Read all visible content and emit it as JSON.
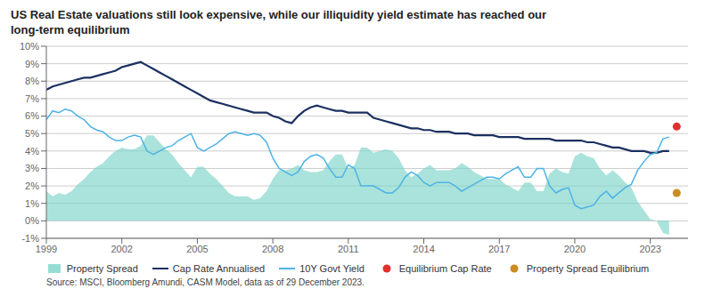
{
  "chart_data": {
    "type": "line",
    "title": "US Real Estate valuations still look expensive, while our illiquidity yield estimate has reached our\nlong-term equilibrium",
    "annotations": [
      "Source: MSCI, Bloomberg Amundi, CASM Model, data as of 29 December 2023."
    ],
    "x": [
      1999.0,
      1999.25,
      1999.5,
      1999.75,
      2000.0,
      2000.25,
      2000.5,
      2000.75,
      2001.0,
      2001.25,
      2001.5,
      2001.75,
      2002.0,
      2002.25,
      2002.5,
      2002.75,
      2003.0,
      2003.25,
      2003.5,
      2003.75,
      2004.0,
      2004.25,
      2004.5,
      2004.75,
      2005.0,
      2005.25,
      2005.5,
      2005.75,
      2006.0,
      2006.25,
      2006.5,
      2006.75,
      2007.0,
      2007.25,
      2007.5,
      2007.75,
      2008.0,
      2008.25,
      2008.5,
      2008.75,
      2009.0,
      2009.25,
      2009.5,
      2009.75,
      2010.0,
      2010.25,
      2010.5,
      2010.75,
      2011.0,
      2011.25,
      2011.5,
      2011.75,
      2012.0,
      2012.25,
      2012.5,
      2012.75,
      2013.0,
      2013.25,
      2013.5,
      2013.75,
      2014.0,
      2014.25,
      2014.5,
      2014.75,
      2015.0,
      2015.25,
      2015.5,
      2015.75,
      2016.0,
      2016.25,
      2016.5,
      2016.75,
      2017.0,
      2017.25,
      2017.5,
      2017.75,
      2018.0,
      2018.25,
      2018.5,
      2018.75,
      2019.0,
      2019.25,
      2019.5,
      2019.75,
      2020.0,
      2020.25,
      2020.5,
      2020.75,
      2021.0,
      2021.25,
      2021.5,
      2021.75,
      2022.0,
      2022.25,
      2022.5,
      2022.75,
      2023.0,
      2023.25,
      2023.5,
      2023.75
    ],
    "xlim": [
      1999.0,
      2024.5
    ],
    "xticks": [
      1999,
      2002,
      2005,
      2008,
      2011,
      2014,
      2017,
      2020,
      2023
    ],
    "ylim": [
      -0.01,
      0.1
    ],
    "yticks": [
      {
        "value": -0.01,
        "label": "-1%"
      },
      {
        "value": 0.0,
        "label": "0%"
      },
      {
        "value": 0.01,
        "label": "1%"
      },
      {
        "value": 0.02,
        "label": "2%"
      },
      {
        "value": 0.03,
        "label": "3%"
      },
      {
        "value": 0.04,
        "label": "4%"
      },
      {
        "value": 0.05,
        "label": "5%"
      },
      {
        "value": 0.06,
        "label": "6%"
      },
      {
        "value": 0.07,
        "label": "7%"
      },
      {
        "value": 0.08,
        "label": "8%"
      },
      {
        "value": 0.09,
        "label": "9%"
      },
      {
        "value": 0.1,
        "label": "10%"
      }
    ],
    "grid": true,
    "legend": "bottom",
    "series": [
      {
        "name": "Property Spread",
        "type": "area",
        "color": "#7dd4c8",
        "values": [
          0.017,
          0.014,
          0.016,
          0.015,
          0.017,
          0.021,
          0.024,
          0.028,
          0.031,
          0.033,
          0.037,
          0.04,
          0.042,
          0.041,
          0.041,
          0.043,
          0.049,
          0.049,
          0.045,
          0.041,
          0.038,
          0.033,
          0.029,
          0.025,
          0.031,
          0.031,
          0.027,
          0.024,
          0.02,
          0.016,
          0.014,
          0.014,
          0.014,
          0.012,
          0.013,
          0.017,
          0.024,
          0.029,
          0.029,
          0.03,
          0.032,
          0.029,
          0.028,
          0.028,
          0.029,
          0.034,
          0.038,
          0.038,
          0.03,
          0.032,
          0.042,
          0.042,
          0.039,
          0.04,
          0.041,
          0.04,
          0.036,
          0.029,
          0.025,
          0.027,
          0.03,
          0.032,
          0.029,
          0.029,
          0.029,
          0.03,
          0.033,
          0.031,
          0.028,
          0.026,
          0.024,
          0.024,
          0.024,
          0.021,
          0.019,
          0.017,
          0.022,
          0.022,
          0.017,
          0.017,
          0.027,
          0.03,
          0.028,
          0.027,
          0.037,
          0.039,
          0.037,
          0.036,
          0.03,
          0.026,
          0.029,
          0.026,
          0.022,
          0.019,
          0.011,
          0.006,
          0.001,
          0.0,
          -0.007,
          -0.008
        ]
      },
      {
        "name": "Cap Rate Annualised",
        "type": "line",
        "color": "#1b3060",
        "values": [
          0.075,
          0.077,
          0.078,
          0.079,
          0.08,
          0.081,
          0.082,
          0.082,
          0.083,
          0.084,
          0.085,
          0.086,
          0.088,
          0.089,
          0.09,
          0.091,
          0.089,
          0.087,
          0.085,
          0.083,
          0.081,
          0.079,
          0.077,
          0.075,
          0.073,
          0.071,
          0.069,
          0.068,
          0.067,
          0.066,
          0.065,
          0.064,
          0.063,
          0.062,
          0.062,
          0.062,
          0.06,
          0.059,
          0.057,
          0.056,
          0.06,
          0.063,
          0.065,
          0.066,
          0.065,
          0.064,
          0.063,
          0.063,
          0.062,
          0.062,
          0.062,
          0.062,
          0.059,
          0.058,
          0.057,
          0.056,
          0.055,
          0.054,
          0.053,
          0.053,
          0.052,
          0.052,
          0.051,
          0.051,
          0.051,
          0.05,
          0.05,
          0.05,
          0.049,
          0.049,
          0.049,
          0.049,
          0.048,
          0.048,
          0.048,
          0.048,
          0.047,
          0.047,
          0.047,
          0.047,
          0.047,
          0.046,
          0.046,
          0.046,
          0.046,
          0.046,
          0.045,
          0.045,
          0.044,
          0.043,
          0.042,
          0.042,
          0.041,
          0.04,
          0.04,
          0.04,
          0.039,
          0.039,
          0.04,
          0.04
        ]
      },
      {
        "name": "10Y Govt Yield",
        "type": "line",
        "color": "#4db3e6",
        "values": [
          0.058,
          0.063,
          0.062,
          0.064,
          0.063,
          0.06,
          0.058,
          0.054,
          0.052,
          0.051,
          0.048,
          0.046,
          0.046,
          0.048,
          0.049,
          0.048,
          0.04,
          0.038,
          0.04,
          0.042,
          0.043,
          0.046,
          0.048,
          0.05,
          0.042,
          0.04,
          0.042,
          0.044,
          0.047,
          0.05,
          0.051,
          0.05,
          0.049,
          0.05,
          0.049,
          0.045,
          0.036,
          0.03,
          0.028,
          0.026,
          0.028,
          0.034,
          0.037,
          0.038,
          0.036,
          0.03,
          0.025,
          0.025,
          0.032,
          0.03,
          0.02,
          0.02,
          0.02,
          0.018,
          0.016,
          0.016,
          0.019,
          0.025,
          0.028,
          0.026,
          0.022,
          0.02,
          0.022,
          0.022,
          0.022,
          0.02,
          0.017,
          0.019,
          0.021,
          0.023,
          0.025,
          0.025,
          0.024,
          0.027,
          0.029,
          0.031,
          0.025,
          0.025,
          0.03,
          0.03,
          0.02,
          0.016,
          0.018,
          0.019,
          0.009,
          0.007,
          0.008,
          0.009,
          0.014,
          0.017,
          0.013,
          0.016,
          0.019,
          0.021,
          0.029,
          0.034,
          0.038,
          0.039,
          0.047,
          0.048
        ]
      },
      {
        "name": "Equilibrium Cap Rate",
        "type": "scatter",
        "color": "#e03030",
        "x": [
          2024.05
        ],
        "values": [
          0.054
        ]
      },
      {
        "name": "Property Spread Equilibrium",
        "type": "scatter",
        "color": "#cc8c22",
        "x": [
          2024.05
        ],
        "values": [
          0.016
        ]
      }
    ]
  }
}
